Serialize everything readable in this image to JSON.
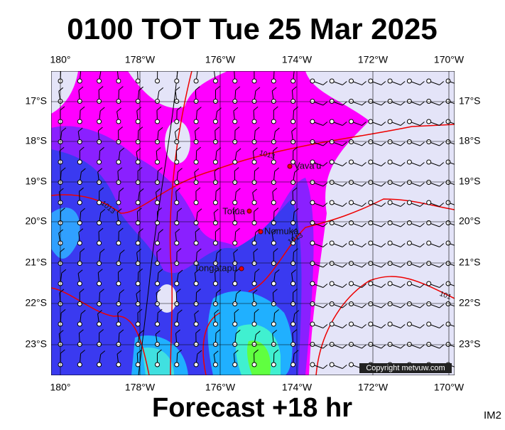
{
  "title": "0100 TOT Tue 25 Mar 2025",
  "footer": "Forecast +18 hr",
  "corner_label": "IM2",
  "map": {
    "lon_labels": [
      "180°",
      "178°W",
      "176°W",
      "174°W",
      "172°W",
      "170°W"
    ],
    "lat_labels": [
      "17°S",
      "18°S",
      "19°S",
      "20°S",
      "21°S",
      "22°S",
      "23°S"
    ],
    "places": [
      "Vava'u",
      "Tofua",
      "Nomuka",
      "Tongatapu"
    ],
    "isobar_labels": [
      "1013",
      "1013",
      "1013",
      "101"
    ],
    "copyright": "Copyright metvuw.com"
  }
}
